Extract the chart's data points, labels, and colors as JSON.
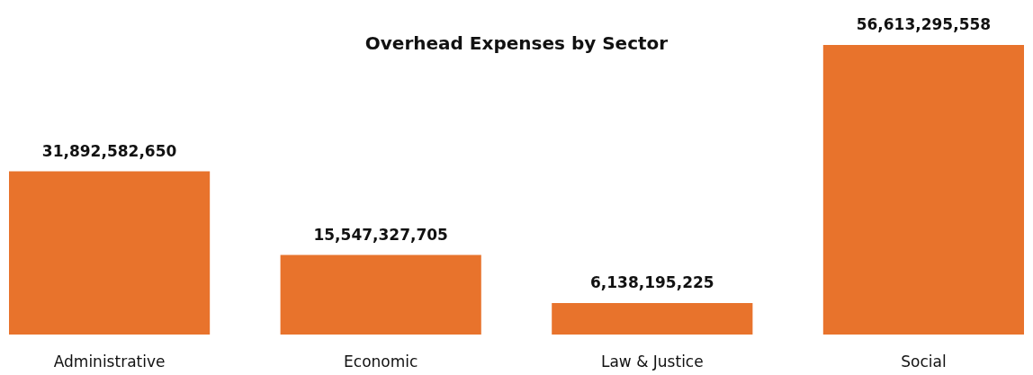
{
  "chart_data": {
    "type": "bar",
    "title": "Overhead Expenses by Sector",
    "categories": [
      "Administrative",
      "Economic",
      "Law & Justice",
      "Social"
    ],
    "values": [
      31892582650,
      15547327705,
      6138195225,
      56613295558
    ],
    "value_labels": [
      "31,892,582,650",
      "15,547,327,705",
      "6,138,195,225",
      "56,613,295,558"
    ],
    "color": "#e8732c"
  }
}
